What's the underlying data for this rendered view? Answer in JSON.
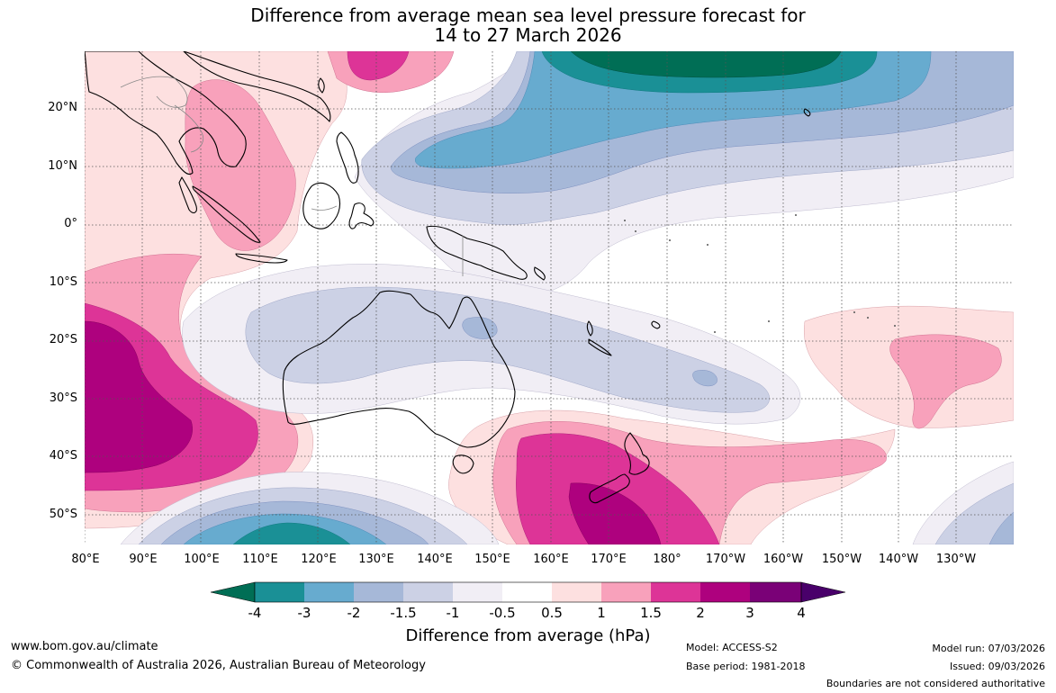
{
  "title_line1": "Difference from average mean sea level pressure forecast for",
  "title_line2": "14 to 27 March 2026",
  "lat_labels": [
    "20°N",
    "10°N",
    "0°",
    "10°S",
    "20°S",
    "30°S",
    "40°S",
    "50°S"
  ],
  "lon_labels": [
    "80°E",
    "90°E",
    "100°E",
    "110°E",
    "120°E",
    "130°E",
    "140°E",
    "150°E",
    "160°E",
    "170°E",
    "180°",
    "170°W",
    "160°W",
    "150°W",
    "140°W",
    "130°W"
  ],
  "colorbar": {
    "title": "Difference from average (hPa)",
    "tick_labels": [
      "-4",
      "-3",
      "-2",
      "-1.5",
      "-1",
      "-0.5",
      "0.5",
      "1",
      "1.5",
      "2",
      "3",
      "4"
    ],
    "colors": [
      "#006e55",
      "#1a9096",
      "#67abcf",
      "#a6b8d8",
      "#ccd1e5",
      "#f1eef5",
      "#ffffff",
      "#fde0e0",
      "#f8a1bb",
      "#dd3497",
      "#ae017e",
      "#7a0177",
      "#49006a"
    ]
  },
  "footer": {
    "website": "www.bom.gov.au/climate",
    "copyright": "© Commonwealth of Australia 2026, Australian Bureau of Meteorology",
    "model": "Model: ACCESS-S2",
    "base_period": "Base period: 1981-2018",
    "model_run": "Model run: 07/03/2026",
    "issued": "Issued: 09/03/2026",
    "disclaimer": "Boundaries are not considered authoritative"
  }
}
